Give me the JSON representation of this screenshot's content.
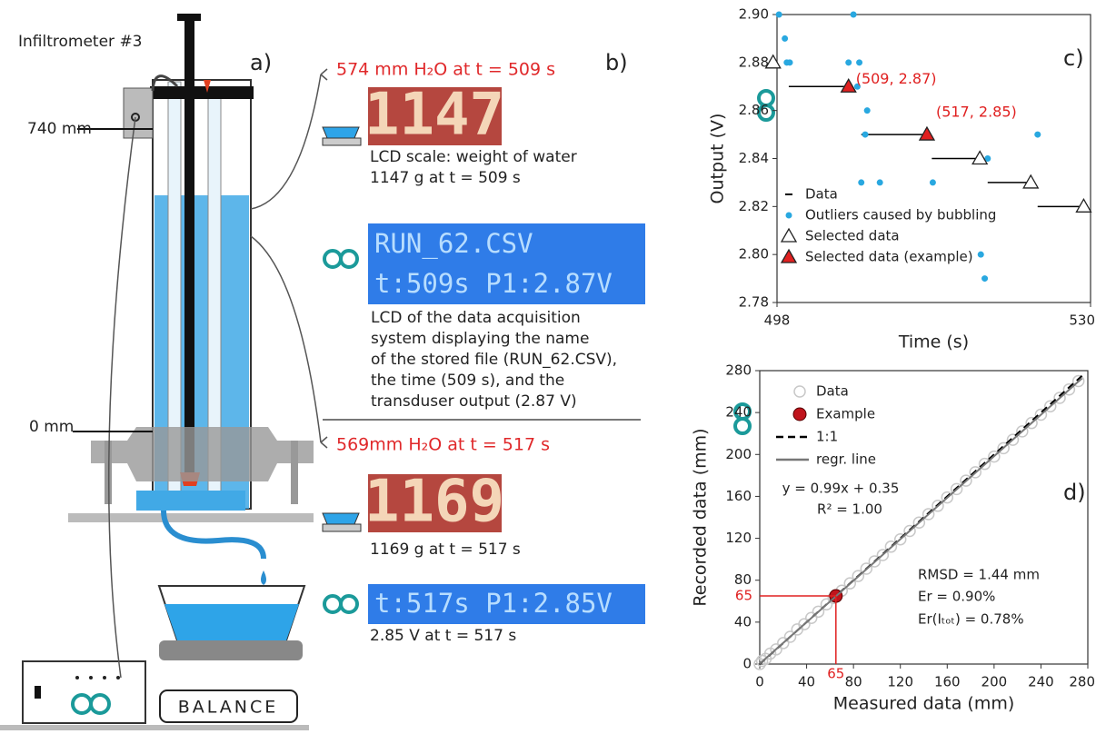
{
  "panel_a": {
    "title": "Infiltrometer #3",
    "label": "a)",
    "top_mark": "740 mm",
    "zero_mark": "0 mm",
    "balance": "BALANCE"
  },
  "panel_b": {
    "label": "b)",
    "reading_1": "574 mm H₂O at t = 509 s",
    "scale_1": "1147",
    "scale_caption_1": [
      "LCD scale: weight of water",
      "1147 g at t = 509 s"
    ],
    "lcd_1": [
      "RUN_62.CSV",
      "t:509s P1:2.87V"
    ],
    "lcd_caption_1": [
      "LCD of the data acquisition",
      "system displaying the name",
      "of the stored file (RUN_62.CSV),",
      "the time (509 s), and the",
      "transduser output (2.87 V)"
    ],
    "reading_2": "569mm H₂O at t = 517 s",
    "scale_2": "1169",
    "scale_caption_2": "1169 g at t = 517 s",
    "lcd_2": "t:517s P1:2.85V",
    "lcd_caption_2": "2.85 V at t = 517 s"
  },
  "chart_data": [
    {
      "type": "scatter",
      "panel_label": "c)",
      "x_label": "Time (s)",
      "y_label": "Output (V)",
      "xlim": [
        498,
        530
      ],
      "xticks": [
        498,
        530
      ],
      "ylim": [
        2.78,
        2.9
      ],
      "yticks": [
        2.78,
        {
          "value": 2.8,
          "label": "2.80"
        },
        2.82,
        2.84,
        2.86,
        2.88,
        {
          "value": 2.9,
          "label": "2.90"
        }
      ],
      "series": [
        {
          "name": "Data",
          "marker": "dash",
          "color": "#000000",
          "x": [
            499.2,
            506.6,
            513.8,
            519.5,
            524.6
          ],
          "x_end": [
            505.3,
            513.3,
            518.7,
            523.9,
            529.3
          ],
          "values": [
            2.87,
            2.85,
            2.84,
            2.83,
            2.82
          ]
        },
        {
          "name": "Outliers caused by bubbling",
          "marker": "dot",
          "color": "#29a8e0",
          "x": [
            498.2,
            498.8,
            499.0,
            499.3,
            505.8,
            505.3,
            506.4,
            506.2,
            507.2,
            507.0,
            506.6,
            508.5,
            513.9,
            519.5,
            524.6,
            518.8,
            519.2
          ],
          "values": [
            2.9,
            2.89,
            2.88,
            2.88,
            2.9,
            2.88,
            2.88,
            2.87,
            2.86,
            2.85,
            2.83,
            2.83,
            2.83,
            2.84,
            2.85,
            2.8,
            2.79
          ]
        },
        {
          "name": "Selected data",
          "marker": "triangle",
          "color": "#ffffff",
          "x": [
            497.6,
            518.7,
            523.9,
            529.3
          ],
          "values": [
            2.88,
            2.84,
            2.83,
            2.82
          ]
        },
        {
          "name": "Selected data (example)",
          "marker": "triangle",
          "color": "#e02020",
          "x": [
            505.3,
            513.3
          ],
          "values": [
            2.87,
            2.85
          ]
        }
      ],
      "annotations": [
        "(509, 2.87)",
        "(517, 2.85)"
      ]
    },
    {
      "type": "scatter",
      "panel_label": "d)",
      "x_label": "Measured data (mm)",
      "y_label": "Recorded data (mm)",
      "xlim": [
        0,
        280
      ],
      "xticks": [
        0,
        40,
        80,
        120,
        160,
        200,
        240,
        280
      ],
      "ylim": [
        0,
        280
      ],
      "yticks": [
        0,
        40,
        80,
        120,
        160,
        200,
        240,
        280
      ],
      "series": [
        {
          "name": "Data",
          "marker": "ring",
          "color": "#c8c8c8",
          "x": [
            0,
            2,
            5,
            9,
            14,
            20,
            26,
            32,
            38,
            44,
            50,
            57,
            63,
            70,
            77,
            84,
            91,
            98,
            105,
            112,
            120,
            128,
            136,
            144,
            152,
            160,
            168,
            176,
            184,
            192,
            200,
            208,
            216,
            224,
            232,
            240,
            248,
            256,
            264,
            272
          ],
          "values": [
            0,
            3,
            5,
            10,
            14,
            20,
            26,
            33,
            38,
            44,
            50,
            57,
            63,
            70,
            77,
            84,
            91,
            98,
            104,
            112,
            119,
            127,
            135,
            143,
            151,
            159,
            167,
            175,
            183,
            191,
            198,
            206,
            214,
            222,
            230,
            238,
            246,
            254,
            262,
            270
          ]
        },
        {
          "name": "Example",
          "marker": "dot",
          "color": "#c0141c",
          "x": [
            65
          ],
          "values": [
            65
          ]
        },
        {
          "name": "1:1",
          "marker": "dashed-line",
          "color": "#000000",
          "x": [
            0,
            275
          ],
          "values": [
            0,
            275
          ]
        },
        {
          "name": "regr. line",
          "marker": "line",
          "color": "#777777",
          "x": [
            0,
            275
          ],
          "values": [
            0.35,
            272.6
          ]
        }
      ],
      "annotations": [
        "y = 0.99x + 0.35",
        "R² = 1.00",
        "RMSD = 1.44 mm",
        "Er = 0.90%",
        "Er(Iₜₒₜ) = 0.78%"
      ],
      "example_labels": [
        "65",
        "65"
      ]
    }
  ]
}
